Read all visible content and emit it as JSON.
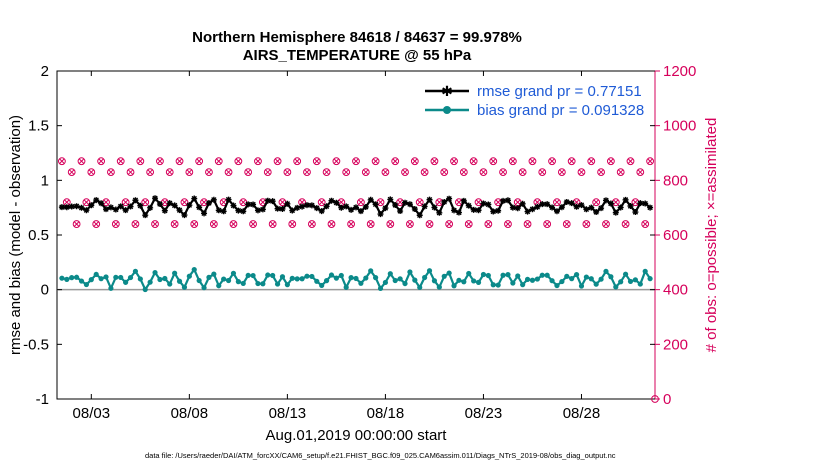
{
  "chart_data": {
    "type": "line",
    "title": "Northern Hemisphere 84618 / 84637 = 99.978%",
    "subtitle": "AIRS_TEMPERATURE @ 55 hPa",
    "xlabel": "Aug.01,2019 00:00:00 start",
    "ylabel": "rmse and bias (model - observation)",
    "ylabel_right": "# of obs: o=possible; ×=assimilated",
    "x_ticks": [
      "08/03",
      "08/08",
      "08/13",
      "08/18",
      "08/23",
      "08/28"
    ],
    "x_tick_days": [
      3,
      8,
      13,
      18,
      23,
      28
    ],
    "xlim": [
      1.25,
      31.75
    ],
    "ylim": [
      -1,
      2
    ],
    "y_ticks": [
      "-1",
      "-0.5",
      "0",
      "0.5",
      "1",
      "1.5",
      "2"
    ],
    "y_tick_values": [
      -1,
      -0.5,
      0,
      0.5,
      1,
      1.5,
      2
    ],
    "ylim_right": [
      0,
      1200
    ],
    "y_ticks_right": [
      "0",
      "200",
      "400",
      "600",
      "800",
      "1000",
      "1200"
    ],
    "y_tick_values_right": [
      0,
      200,
      400,
      600,
      800,
      1000,
      1200
    ],
    "zero_line": 0,
    "legend_position": "top-right",
    "series": [
      {
        "name": "rmse grand pr = 0.77151",
        "color": "#000000",
        "marker": "star",
        "axis": "left",
        "pattern": [
          0.74,
          0.72,
          0.77,
          0.8,
          0.75,
          0.71,
          0.78,
          0.82,
          0.76,
          0.73,
          0.79,
          0.75
        ]
      },
      {
        "name": "bias grand pr = 0.091328",
        "color": "#0b8a8a",
        "marker": "circle",
        "axis": "left",
        "pattern": [
          0.09,
          0.06,
          0.12,
          0.15,
          0.08,
          0.03,
          0.1,
          0.14,
          0.07,
          0.11,
          0.05,
          0.13
        ]
      },
      {
        "name": "possible",
        "color": "#d6005b",
        "marker": "circle-outline",
        "axis": "right",
        "cycle": [
          870,
          720,
          830,
          640
        ]
      },
      {
        "name": "assimilated",
        "color": "#d6005b",
        "marker": "x",
        "axis": "right",
        "cycle": [
          870,
          720,
          830,
          640
        ]
      }
    ],
    "last_obs_value": 0
  },
  "footer": "data file: /Users/raeder/DAI/ATM_forcXX/CAM6_setup/f.e21.FHIST_BGC.f09_025.CAM6assim.011/Diags_NTrS_2019-08/obs_diag_output.nc"
}
